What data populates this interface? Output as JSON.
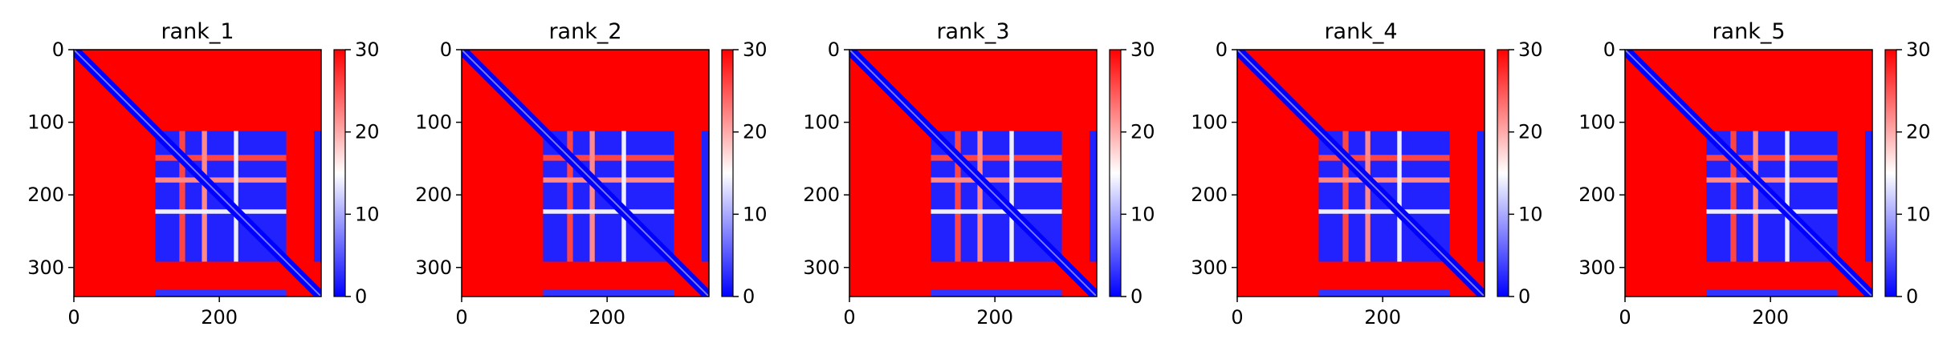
{
  "colors": {
    "high": "#ff0000",
    "mid": "#ffffff",
    "low": "#0000ff",
    "frame": "#000000"
  },
  "chart_data": [
    {
      "type": "heatmap",
      "title": "rank_1",
      "n": 340,
      "xlim": [
        0,
        340
      ],
      "ylim": [
        340,
        0
      ],
      "xticks": [
        "0",
        "200"
      ],
      "xtick_values": [
        0,
        200
      ],
      "yticks": [
        "0",
        "100",
        "200",
        "300"
      ],
      "ytick_values": [
        0,
        100,
        200,
        300
      ],
      "colorbar": {
        "ticks": [
          "0",
          "10",
          "20",
          "30"
        ],
        "tick_values": [
          0,
          10,
          20,
          30
        ],
        "vmin": 0,
        "vmax": 30
      },
      "background_value": 30,
      "blocks": [
        {
          "x": [
            112,
            292
          ],
          "y": [
            112,
            292
          ],
          "value": 2
        },
        {
          "x": [
            330,
            340
          ],
          "y": [
            112,
            292
          ],
          "value": 2
        },
        {
          "x": [
            112,
            292
          ],
          "y": [
            330,
            340
          ],
          "value": 3
        }
      ],
      "gaps": [
        {
          "axis": "both",
          "range": [
            145,
            153
          ],
          "value": 26
        },
        {
          "axis": "both",
          "range": [
            176,
            183
          ],
          "value": 22
        },
        {
          "axis": "both",
          "range": [
            220,
            226
          ],
          "value": 14
        },
        {
          "axis": "x",
          "range": [
            298,
            327
          ],
          "value": 30
        }
      ],
      "diagonal_band": 7
    },
    {
      "type": "heatmap",
      "title": "rank_2",
      "n": 340,
      "xlim": [
        0,
        340
      ],
      "ylim": [
        340,
        0
      ],
      "xticks": [
        "0",
        "200"
      ],
      "xtick_values": [
        0,
        200
      ],
      "yticks": [
        "0",
        "100",
        "200",
        "300"
      ],
      "ytick_values": [
        0,
        100,
        200,
        300
      ],
      "colorbar": {
        "ticks": [
          "0",
          "10",
          "20",
          "30"
        ],
        "tick_values": [
          0,
          10,
          20,
          30
        ],
        "vmin": 0,
        "vmax": 30
      },
      "background_value": 30,
      "blocks": [
        {
          "x": [
            112,
            292
          ],
          "y": [
            112,
            292
          ],
          "value": 2
        },
        {
          "x": [
            330,
            340
          ],
          "y": [
            112,
            292
          ],
          "value": 2
        },
        {
          "x": [
            112,
            292
          ],
          "y": [
            330,
            340
          ],
          "value": 3
        }
      ],
      "gaps": [
        {
          "axis": "both",
          "range": [
            145,
            153
          ],
          "value": 26
        },
        {
          "axis": "both",
          "range": [
            176,
            183
          ],
          "value": 22
        },
        {
          "axis": "both",
          "range": [
            220,
            226
          ],
          "value": 14
        }
      ],
      "diagonal_band": 7
    },
    {
      "type": "heatmap",
      "title": "rank_3",
      "n": 340,
      "xlim": [
        0,
        340
      ],
      "ylim": [
        340,
        0
      ],
      "xticks": [
        "0",
        "200"
      ],
      "xtick_values": [
        0,
        200
      ],
      "yticks": [
        "0",
        "100",
        "200",
        "300"
      ],
      "ytick_values": [
        0,
        100,
        200,
        300
      ],
      "colorbar": {
        "ticks": [
          "0",
          "10",
          "20",
          "30"
        ],
        "tick_values": [
          0,
          10,
          20,
          30
        ],
        "vmin": 0,
        "vmax": 30
      },
      "background_value": 30,
      "blocks": [
        {
          "x": [
            112,
            292
          ],
          "y": [
            112,
            292
          ],
          "value": 2
        },
        {
          "x": [
            330,
            340
          ],
          "y": [
            112,
            292
          ],
          "value": 2
        },
        {
          "x": [
            112,
            292
          ],
          "y": [
            330,
            340
          ],
          "value": 3
        }
      ],
      "gaps": [
        {
          "axis": "both",
          "range": [
            145,
            153
          ],
          "value": 26
        },
        {
          "axis": "both",
          "range": [
            176,
            183
          ],
          "value": 22
        },
        {
          "axis": "both",
          "range": [
            220,
            226
          ],
          "value": 14
        }
      ],
      "diagonal_band": 7
    },
    {
      "type": "heatmap",
      "title": "rank_4",
      "n": 340,
      "xlim": [
        0,
        340
      ],
      "ylim": [
        340,
        0
      ],
      "xticks": [
        "0",
        "200"
      ],
      "xtick_values": [
        0,
        200
      ],
      "yticks": [
        "0",
        "100",
        "200",
        "300"
      ],
      "ytick_values": [
        0,
        100,
        200,
        300
      ],
      "colorbar": {
        "ticks": [
          "0",
          "10",
          "20",
          "30"
        ],
        "tick_values": [
          0,
          10,
          20,
          30
        ],
        "vmin": 0,
        "vmax": 30
      },
      "background_value": 30,
      "blocks": [
        {
          "x": [
            112,
            292
          ],
          "y": [
            112,
            292
          ],
          "value": 2
        },
        {
          "x": [
            330,
            340
          ],
          "y": [
            112,
            292
          ],
          "value": 2
        },
        {
          "x": [
            112,
            292
          ],
          "y": [
            330,
            340
          ],
          "value": 3
        }
      ],
      "gaps": [
        {
          "axis": "both",
          "range": [
            145,
            153
          ],
          "value": 26
        },
        {
          "axis": "both",
          "range": [
            176,
            183
          ],
          "value": 22
        },
        {
          "axis": "both",
          "range": [
            220,
            226
          ],
          "value": 14
        }
      ],
      "diagonal_band": 7
    },
    {
      "type": "heatmap",
      "title": "rank_5",
      "n": 340,
      "xlim": [
        0,
        340
      ],
      "ylim": [
        340,
        0
      ],
      "xticks": [
        "0",
        "200"
      ],
      "xtick_values": [
        0,
        200
      ],
      "yticks": [
        "0",
        "100",
        "200",
        "300"
      ],
      "ytick_values": [
        0,
        100,
        200,
        300
      ],
      "colorbar": {
        "ticks": [
          "0",
          "10",
          "20",
          "30"
        ],
        "tick_values": [
          0,
          10,
          20,
          30
        ],
        "vmin": 0,
        "vmax": 30
      },
      "background_value": 30,
      "blocks": [
        {
          "x": [
            112,
            292
          ],
          "y": [
            112,
            292
          ],
          "value": 2
        },
        {
          "x": [
            330,
            340
          ],
          "y": [
            112,
            292
          ],
          "value": 2
        },
        {
          "x": [
            112,
            292
          ],
          "y": [
            330,
            340
          ],
          "value": 3
        }
      ],
      "gaps": [
        {
          "axis": "both",
          "range": [
            145,
            153
          ],
          "value": 26
        },
        {
          "axis": "both",
          "range": [
            176,
            183
          ],
          "value": 22
        },
        {
          "axis": "both",
          "range": [
            220,
            226
          ],
          "value": 14
        }
      ],
      "diagonal_band": 7
    }
  ]
}
